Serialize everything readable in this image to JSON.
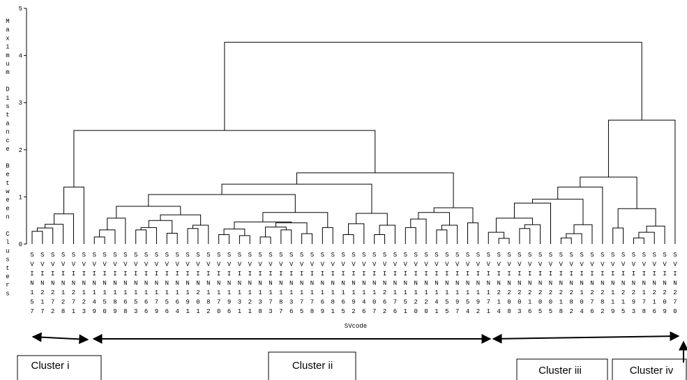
{
  "chart_data": {
    "type": "dendrogram",
    "y_label": "Maximum Distance Between Clusters",
    "x_label": "SVcode",
    "ylim": [
      0,
      5
    ],
    "yticks": [
      0,
      1,
      2,
      3,
      4,
      5
    ],
    "color": "#000000",
    "annotations": [
      "Cluster i",
      "Cluster ii",
      "Cluster iii",
      "Cluster iv"
    ],
    "tree": {
      "height": 4.28,
      "children": [
        {
          "height": 2.41,
          "children": [
            {
              "height": 1.21,
              "children": [
                {
                  "height": 0.64,
                  "children": [
                    {
                      "height": 0.42,
                      "children": [
                        {
                          "height": 0.34,
                          "children": [
                            {
                              "height": 0.27,
                              "children": [
                                {
                                  "label": "SVIN157"
                                },
                                {
                                  "label": "SVIN217"
                                }
                              ]
                            },
                            {
                              "label": "SVIN272"
                            }
                          ]
                        },
                        {
                          "label": "SVIN128"
                        }
                      ]
                    },
                    {
                      "label": "SVIN271"
                    }
                  ]
                },
                {
                  "label": "SVIN123"
                }
              ]
            },
            {
              "height": 1.51,
              "children": [
                {
                  "height": 1.27,
                  "children": [
                    {
                      "height": 1.05,
                      "children": [
                        {
                          "height": 0.8,
                          "children": [
                            {
                              "height": 0.55,
                              "children": [
                                {
                                  "height": 0.3,
                                  "children": [
                                    {
                                      "height": 0.15,
                                      "children": [
                                        {
                                          "label": "SVIN149"
                                        },
                                        {
                                          "label": "SVIN150"
                                        }
                                      ]
                                    },
                                    {
                                      "label": "SVIN189"
                                    }
                                  ]
                                },
                                {
                                  "label": "SVIN168"
                                }
                              ]
                            },
                            {
                              "height": 0.62,
                              "children": [
                                {
                                  "height": 0.5,
                                  "children": [
                                    {
                                      "height": 0.35,
                                      "children": [
                                        {
                                          "height": 0.3,
                                          "children": [
                                            {
                                              "label": "SVIN153"
                                            },
                                            {
                                              "label": "SVIN166"
                                            }
                                          ]
                                        },
                                        {
                                          "label": "SVIN179"
                                        }
                                      ]
                                    },
                                    {
                                      "height": 0.23,
                                      "children": [
                                        {
                                          "label": "SVIN156"
                                        },
                                        {
                                          "label": "SVIN164"
                                        }
                                      ]
                                    }
                                  ]
                                },
                                {
                                  "height": 0.4,
                                  "children": [
                                    {
                                      "height": 0.33,
                                      "children": [
                                        {
                                          "label": "SVIN191"
                                        },
                                        {
                                          "label": "SVIN201"
                                        }
                                      ]
                                    },
                                    {
                                      "label": "SVIN182"
                                    }
                                  ]
                                }
                              ]
                            }
                          ]
                        },
                        {
                          "height": 0.67,
                          "children": [
                            {
                              "height": 0.47,
                              "children": [
                                {
                                  "height": 0.32,
                                  "children": [
                                    {
                                      "height": 0.2,
                                      "children": [
                                        {
                                          "label": "SVIN170"
                                        },
                                        {
                                          "label": "SVIN196"
                                        }
                                      ]
                                    },
                                    {
                                      "height": 0.18,
                                      "children": [
                                        {
                                          "label": "SVIN131"
                                        },
                                        {
                                          "label": "SVIN121"
                                        }
                                      ]
                                    }
                                  ]
                                },
                                {
                                  "height": 0.45,
                                  "children": [
                                    {
                                      "height": 0.36,
                                      "children": [
                                        {
                                          "height": 0.15,
                                          "children": [
                                            {
                                              "label": "SVIN138"
                                            },
                                            {
                                              "label": "SVIN173"
                                            }
                                          ]
                                        },
                                        {
                                          "height": 0.3,
                                          "children": [
                                            {
                                              "label": "SVIN187"
                                            },
                                            {
                                              "label": "SVIN136"
                                            }
                                          ]
                                        }
                                      ]
                                    },
                                    {
                                      "height": 0.22,
                                      "children": [
                                        {
                                          "label": "SVIN175"
                                        },
                                        {
                                          "label": "SVIN178"
                                        }
                                      ]
                                    }
                                  ]
                                }
                              ]
                            },
                            {
                              "height": 0.35,
                              "children": [
                                {
                                  "label": "SVIN169"
                                },
                                {
                                  "label": "SVIN181"
                                }
                              ]
                            }
                          ]
                        }
                      ]
                    },
                    {
                      "height": 0.65,
                      "children": [
                        {
                          "height": 0.43,
                          "children": [
                            {
                              "height": 0.2,
                              "children": [
                                {
                                  "label": "SVIN165"
                                },
                                {
                                  "label": "SVIN192"
                                }
                              ]
                            },
                            {
                              "label": "SVIN146"
                            }
                          ]
                        },
                        {
                          "height": 0.4,
                          "children": [
                            {
                              "height": 0.2,
                              "children": [
                                {
                                  "label": "SVIN107"
                                },
                                {
                                  "label": "SVIN262"
                                }
                              ]
                            },
                            {
                              "label": "SVIN176"
                            }
                          ]
                        }
                      ]
                    }
                  ]
                },
                {
                  "height": 0.77,
                  "children": [
                    {
                      "height": 0.67,
                      "children": [
                        {
                          "height": 0.53,
                          "children": [
                            {
                              "height": 0.35,
                              "children": [
                                {
                                  "label": "SVIN151"
                                },
                                {
                                  "label": "SVIN120"
                                }
                              ]
                            },
                            {
                              "label": "SVIN120"
                            }
                          ]
                        },
                        {
                          "height": 0.4,
                          "children": [
                            {
                              "height": 0.3,
                              "children": [
                                {
                                  "label": "SVIN141"
                                },
                                {
                                  "label": "SVIN155"
                                }
                              ]
                            },
                            {
                              "label": "SVIN197"
                            }
                          ]
                        }
                      ]
                    },
                    {
                      "height": 0.45,
                      "children": [
                        {
                          "label": "SVIN154"
                        },
                        {
                          "label": "SVIN192"
                        }
                      ]
                    }
                  ]
                }
              ]
            }
          ]
        },
        {
          "height": 2.63,
          "children": [
            {
              "height": 1.42,
              "children": [
                {
                  "height": 1.21,
                  "children": [
                    {
                      "height": 0.95,
                      "children": [
                        {
                          "height": 0.87,
                          "children": [
                            {
                              "height": 0.55,
                              "children": [
                                {
                                  "height": 0.25,
                                  "children": [
                                    {
                                      "label": "SVIN171"
                                    },
                                    {
                                      "height": 0.12,
                                      "children": [
                                        {
                                          "label": "SVIN214"
                                        },
                                        {
                                          "label": "SVIN208"
                                        }
                                      ]
                                    }
                                  ]
                                },
                                {
                                  "height": 0.41,
                                  "children": [
                                    {
                                      "height": 0.33,
                                      "children": [
                                        {
                                          "label": "SVIN203"
                                        },
                                        {
                                          "label": "SVIN216"
                                        }
                                      ]
                                    },
                                    {
                                      "label": "SVIN205"
                                    }
                                  ]
                                }
                              ]
                            },
                            {
                              "label": "SVIN205"
                            }
                          ]
                        },
                        {
                          "height": 0.41,
                          "children": [
                            {
                              "height": 0.22,
                              "children": [
                                {
                                  "height": 0.13,
                                  "children": [
                                    {
                                      "label": "SVIN218"
                                    },
                                    {
                                      "label": "SVIN282"
                                    }
                                  ]
                                },
                                {
                                  "label": "SVIN104"
                                }
                              ]
                            },
                            {
                              "label": "SVIN276"
                            }
                          ]
                        }
                      ]
                    },
                    {
                      "label": "SVIN282"
                    }
                  ]
                },
                {
                  "height": 0.75,
                  "children": [
                    {
                      "height": 0.34,
                      "children": [
                        {
                          "label": "SVIN119"
                        },
                        {
                          "label": "SVIN215"
                        }
                      ]
                    },
                    {
                      "height": 0.38,
                      "children": [
                        {
                          "height": 0.25,
                          "children": [
                            {
                              "height": 0.13,
                              "children": [
                                {
                                  "label": "SVIN293"
                                },
                                {
                                  "label": "SVIN178"
                                }
                              ]
                            },
                            {
                              "label": "SVIN216"
                            }
                          ]
                        },
                        {
                          "label": "SVIN209"
                        }
                      ]
                    }
                  ]
                }
              ]
            },
            {
              "label": "SVIN270"
            }
          ]
        }
      ]
    }
  }
}
